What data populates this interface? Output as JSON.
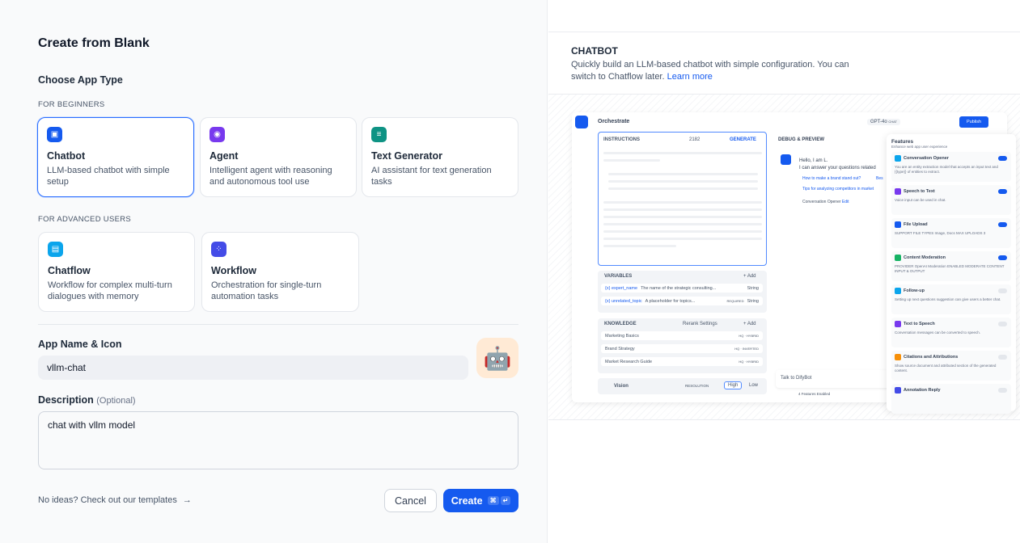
{
  "dialog": {
    "title": "Create from Blank",
    "choose_type": "Choose App Type",
    "beginners_label": "FOR BEGINNERS",
    "advanced_label": "FOR ADVANCED USERS",
    "beginner_types": [
      {
        "name": "Chatbot",
        "desc": "LLM-based chatbot with simple setup",
        "color": "#155aef",
        "icon": "chatbot-icon",
        "selected": true
      },
      {
        "name": "Agent",
        "desc": "Intelligent agent with reasoning and autonomous tool use",
        "color": "#7839ee",
        "icon": "agent-icon"
      },
      {
        "name": "Text Generator",
        "desc": "AI assistant for text generation tasks",
        "color": "#0e9384",
        "icon": "text-generator-icon"
      }
    ],
    "advanced_types": [
      {
        "name": "Chatflow",
        "desc": "Workflow for complex multi-turn dialogues with memory",
        "color": "#0ba5ec",
        "icon": "chatflow-icon"
      },
      {
        "name": "Workflow",
        "desc": "Orchestration for single-turn automation tasks",
        "color": "#444ce7",
        "icon": "workflow-icon"
      }
    ],
    "app_name_label": "App Name & Icon",
    "app_name_value": "vllm-chat",
    "app_icon": "🤖",
    "description_label": "Description",
    "description_optional": "(Optional)",
    "description_value": "chat with vllm model",
    "templates_link": "No ideas? Check out our templates",
    "templates_arrow": "→",
    "cancel": "Cancel",
    "create": "Create",
    "create_kbd1": "⌘",
    "create_kbd2": "↵"
  },
  "preview": {
    "heading": "CHATBOT",
    "desc": "Quickly build an LLM-based chatbot with simple configuration. You can switch to Chatflow later.",
    "learn_more": "Learn more",
    "screen": {
      "orchestrate": "Orchestrate",
      "model": "GPT-4o",
      "model_tag": "CHAT",
      "publish": "Publish",
      "instructions": "INSTRUCTIONS",
      "count": "2182",
      "generate": "GENERATE",
      "variables": "VARIABLES",
      "add": "+ Add",
      "vars": [
        {
          "key": "{x} expert_name",
          "desc": "The name of the strategic consulting...",
          "type": "String"
        },
        {
          "key": "{x} unrelated_topic",
          "desc": "A placeholder for topics...",
          "req": "REQUIRED",
          "type": "String"
        }
      ],
      "knowledge": "KNOWLEDGE",
      "rerank": "Rerank Settings",
      "docs": [
        {
          "name": "Marketing Basics",
          "tag": "HQ · HYBRID"
        },
        {
          "name": "Brand Strategy",
          "tag": "HQ · INVERTED"
        },
        {
          "name": "Market Research Guide",
          "tag": "HQ · HYBRID"
        }
      ],
      "vision": "Vision",
      "resolution": "RESOLUTION",
      "high": "High",
      "low": "Low",
      "debug": "DEBUG & PREVIEW",
      "hello": "Hello, I am L.",
      "answer": "I can answer your questions related",
      "q1": "How to make a brand stand out?",
      "q1b": "Bes",
      "q2": "Tips for analyzing competitors in market",
      "opener": "Conversation Opener",
      "edit": "Edit",
      "talk": "Talk to DifyBot",
      "enabled": "4 Features Enabled",
      "features_title": "Features",
      "features_sub": "Enhance web app user experience",
      "features": [
        {
          "name": "Conversation Opener",
          "desc": "You are an entity extraction model that accepts an input text and {{type}} of entities to extract.",
          "on": true,
          "color": "#0ba5ec"
        },
        {
          "name": "Speech to Text",
          "desc": "Voice input can be used in chat.",
          "on": true,
          "color": "#7839ee"
        },
        {
          "name": "File Upload",
          "desc": "SUPPORT FILE TYPES  Image, Docs   MAX UPLOADS 3",
          "on": true,
          "color": "#155aef"
        },
        {
          "name": "Content Moderation",
          "desc": "PROVIDER OpenAI Moderation   ENABLED MODERATE CONTENT INPUT & OUTPUT",
          "on": true,
          "color": "#16b364"
        },
        {
          "name": "Follow-up",
          "desc": "Setting up next questions suggestion can give users a better chat.",
          "on": false,
          "color": "#0ba5ec"
        },
        {
          "name": "Text to Speech",
          "desc": "Conversation messages can be converted to speech.",
          "on": false,
          "color": "#7839ee"
        },
        {
          "name": "Citations and Attributions",
          "desc": "Show source document and attributed section of the generated content.",
          "on": false,
          "color": "#f79009"
        },
        {
          "name": "Annotation Reply",
          "desc": "",
          "on": false,
          "color": "#444ce7"
        }
      ]
    }
  }
}
